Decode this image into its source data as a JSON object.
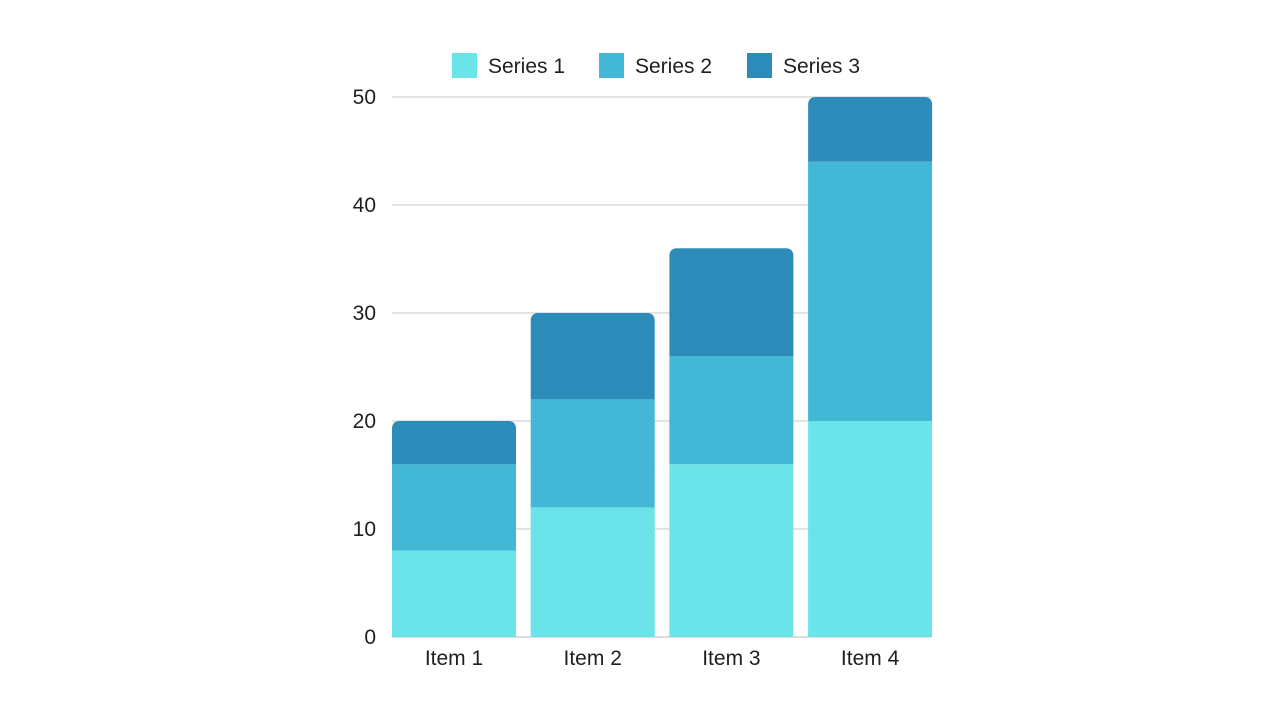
{
  "chart_data": {
    "type": "bar",
    "stacked": true,
    "title": "",
    "xlabel": "",
    "ylabel": "",
    "categories": [
      "Item 1",
      "Item 2",
      "Item 3",
      "Item 4"
    ],
    "series": [
      {
        "name": "Series 1",
        "color": "#6ae4e8",
        "values": [
          8,
          12,
          16,
          20
        ]
      },
      {
        "name": "Series 2",
        "color": "#42b8d6",
        "values": [
          8,
          10,
          10,
          24
        ]
      },
      {
        "name": "Series 3",
        "color": "#2d8bb9",
        "values": [
          4,
          8,
          10,
          6
        ]
      }
    ],
    "ylim": [
      0,
      50
    ],
    "yticks": [
      0,
      10,
      20,
      30,
      40,
      50
    ],
    "grid": true,
    "legend_position": "top-center"
  }
}
